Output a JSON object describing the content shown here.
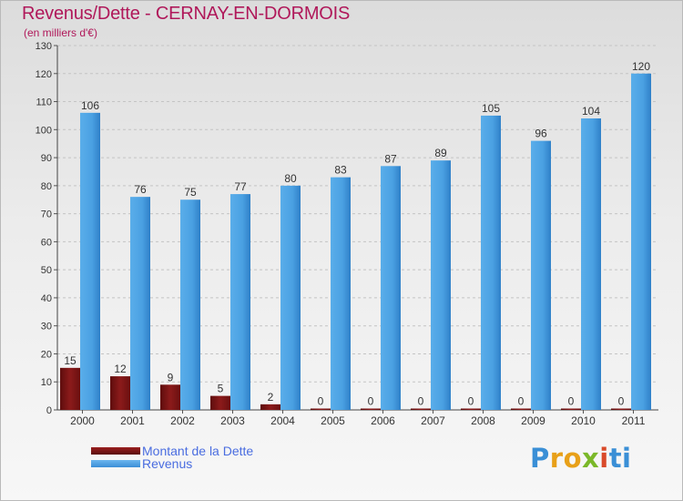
{
  "chart_data": {
    "type": "bar",
    "title": "Revenus/Dette - CERNAY-EN-DORMOIS",
    "subtitle": "(en milliers d'€)",
    "categories": [
      "2000",
      "2001",
      "2002",
      "2003",
      "2004",
      "2005",
      "2006",
      "2007",
      "2008",
      "2009",
      "2010",
      "2011"
    ],
    "series": [
      {
        "name": "Montant de la Dette",
        "values": [
          15,
          12,
          9,
          5,
          2,
          0,
          0,
          0,
          0,
          0,
          0,
          0
        ],
        "color": "#7a1414"
      },
      {
        "name": "Revenus",
        "values": [
          106,
          76,
          75,
          77,
          80,
          83,
          87,
          89,
          105,
          96,
          104,
          120
        ],
        "color": "#4da1e3"
      }
    ],
    "ylim": [
      0,
      130
    ],
    "yticks": [
      0,
      10,
      20,
      30,
      40,
      50,
      60,
      70,
      80,
      90,
      100,
      110,
      120,
      130
    ],
    "grid": true,
    "legend": "bottom-left"
  },
  "logo": {
    "chars": [
      "P",
      "r",
      "o",
      "x",
      "i",
      "ti"
    ]
  }
}
